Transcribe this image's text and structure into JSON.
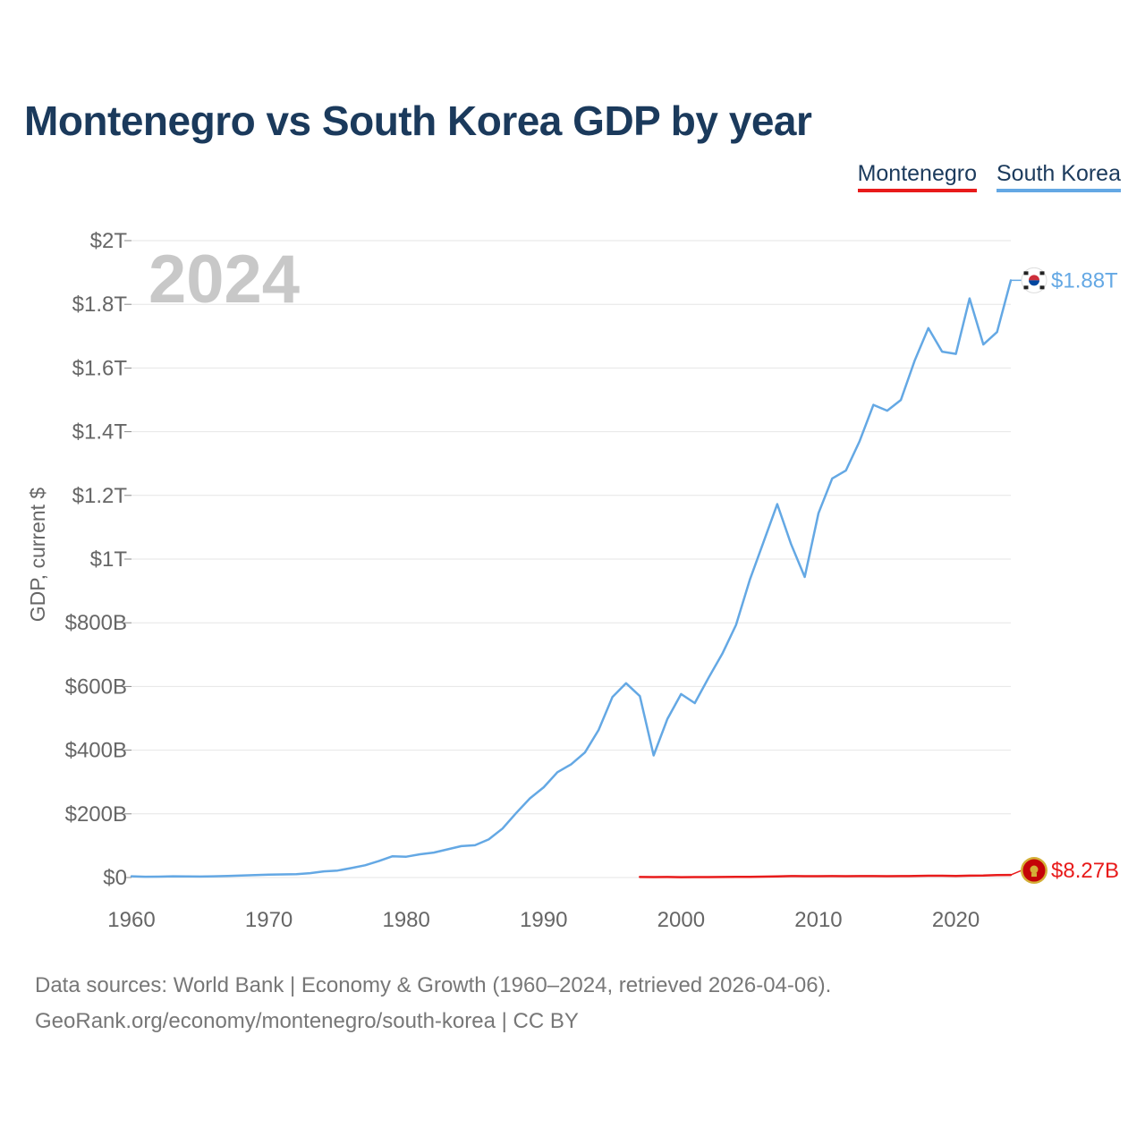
{
  "title": "Montenegro vs South Korea GDP by year",
  "legend": {
    "montenegro": "Montenegro",
    "south_korea": "South Korea"
  },
  "source_line1": "Data sources: World Bank | Economy & Growth (1960–2024, retrieved 2026-04-06).",
  "source_line2": "GeoRank.org/economy/montenegro/south-korea | CC BY",
  "colors": {
    "montenegro": "#e81b1b",
    "south_korea": "#64a8e4",
    "grid": "#e6e6e6",
    "year": "#c8c8c8"
  },
  "chart_data": {
    "type": "line",
    "title": "Montenegro vs South Korea GDP by year",
    "ylabel": "GDP, current $",
    "xlabel": "",
    "xlim": [
      1960,
      2024
    ],
    "ylim": [
      0,
      2000
    ],
    "y_unit": "billions USD",
    "xticks": [
      1960,
      1970,
      1980,
      1990,
      2000,
      2010,
      2020
    ],
    "yticks": [
      0,
      200,
      400,
      600,
      800,
      1000,
      1200,
      1400,
      1600,
      1800,
      2000
    ],
    "ytick_labels": [
      "$0",
      "$200B",
      "$400B",
      "$600B",
      "$800B",
      "$1T",
      "$1.2T",
      "$1.4T",
      "$1.6T",
      "$1.8T",
      "$2T"
    ],
    "year_annotation": "2024",
    "grid": true,
    "legend_position": "top-right",
    "series": [
      {
        "name": "South Korea",
        "color": "#64a8e4",
        "end_label": "$1.88T",
        "flag": "south-korea-flag",
        "x": [
          1960,
          1961,
          1962,
          1963,
          1964,
          1965,
          1966,
          1967,
          1968,
          1969,
          1970,
          1971,
          1972,
          1973,
          1974,
          1975,
          1976,
          1977,
          1978,
          1979,
          1980,
          1981,
          1982,
          1983,
          1984,
          1985,
          1986,
          1987,
          1988,
          1989,
          1990,
          1991,
          1992,
          1993,
          1994,
          1995,
          1996,
          1997,
          1998,
          1999,
          2000,
          2001,
          2002,
          2003,
          2004,
          2005,
          2006,
          2007,
          2008,
          2009,
          2010,
          2011,
          2012,
          2013,
          2014,
          2015,
          2016,
          2017,
          2018,
          2019,
          2020,
          2021,
          2022,
          2023,
          2024
        ],
        "values": [
          4,
          2.4,
          2.8,
          3.9,
          3.5,
          3.1,
          3.8,
          4.9,
          6.1,
          7.7,
          9,
          9.9,
          10.8,
          13.8,
          19.4,
          21.8,
          29.8,
          38.4,
          51.6,
          66.8,
          65.4,
          72.9,
          78.3,
          88.4,
          98.6,
          101.3,
          119.7,
          153.7,
          202.7,
          248.5,
          283.4,
          330.6,
          355.5,
          392.7,
          463.6,
          566.6,
          610.2,
          569.8,
          383.3,
          497.5,
          576.2,
          547.7,
          627.2,
          702.7,
          793.2,
          934.9,
          1053.2,
          1172.6,
          1047.3,
          943.9,
          1144.1,
          1253.2,
          1278.4,
          1370.6,
          1484.3,
          1466.0,
          1499.7,
          1623.1,
          1725.4,
          1651.4,
          1644.3,
          1818.4,
          1673.9,
          1712.8,
          1875.4
        ]
      },
      {
        "name": "Montenegro",
        "color": "#e81b1b",
        "end_label": "$8.27B",
        "flag": "montenegro-flag",
        "x": [
          1997,
          1998,
          1999,
          2000,
          2001,
          2002,
          2003,
          2004,
          2005,
          2006,
          2007,
          2008,
          2009,
          2010,
          2011,
          2012,
          2013,
          2014,
          2015,
          2016,
          2017,
          2018,
          2019,
          2020,
          2021,
          2022,
          2023,
          2024
        ],
        "values": [
          1.6,
          1.5,
          1.6,
          1.0,
          1.3,
          1.4,
          1.7,
          2.1,
          2.3,
          2.7,
          3.7,
          4.5,
          4.2,
          4.1,
          4.5,
          4.1,
          4.5,
          4.6,
          4.1,
          4.4,
          4.8,
          5.5,
          5.5,
          4.8,
          5.9,
          6.2,
          7.5,
          8.27
        ]
      }
    ]
  }
}
